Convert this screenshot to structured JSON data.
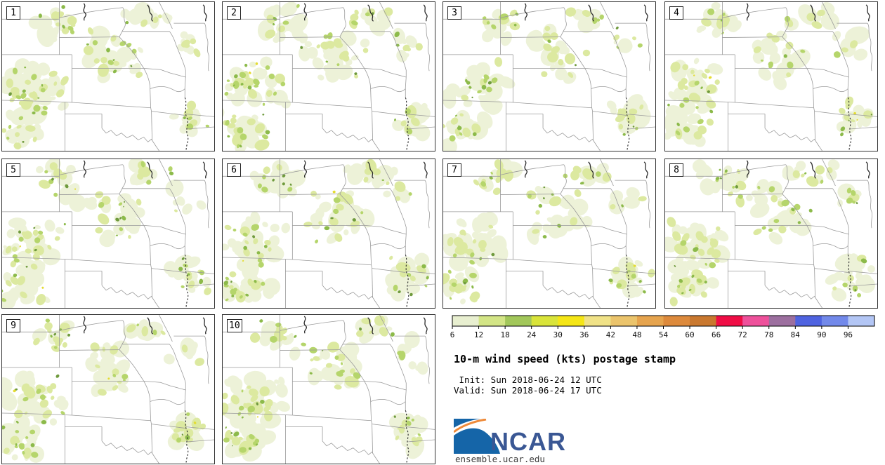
{
  "plot": {
    "title": "10-m wind speed (kts) postage stamp",
    "init_line": " Init: Sun 2018-06-24 12 UTC",
    "valid_line": "Valid: Sun 2018-06-24 17 UTC"
  },
  "panels": [
    {
      "label": "1",
      "seed": 1
    },
    {
      "label": "2",
      "seed": 2
    },
    {
      "label": "3",
      "seed": 3
    },
    {
      "label": "4",
      "seed": 4
    },
    {
      "label": "5",
      "seed": 5
    },
    {
      "label": "6",
      "seed": 6
    },
    {
      "label": "7",
      "seed": 7
    },
    {
      "label": "8",
      "seed": 8
    },
    {
      "label": "9",
      "seed": 9
    },
    {
      "label": "10",
      "seed": 10
    }
  ],
  "colorbar": {
    "tick_labels": [
      "6",
      "12",
      "18",
      "24",
      "30",
      "36",
      "42",
      "48",
      "54",
      "60",
      "66",
      "72",
      "78",
      "84",
      "90",
      "96"
    ],
    "segment_colors": [
      "#e8efd0",
      "#d3e586",
      "#a2c75a",
      "#d9e43a",
      "#f5e616",
      "#f0e287",
      "#ebc46c",
      "#e6a44e",
      "#dd8a3c",
      "#c9782f",
      "#ef0d45",
      "#ee519b",
      "#9c6f9f",
      "#4f63e0",
      "#7289ea",
      "#b3c6f5"
    ],
    "units": "kts"
  },
  "shading": {
    "pale": "#edf2d8",
    "light": "#dce9a0",
    "mid": "#b5d56b",
    "green": "#8cba4a",
    "dark": "#6f9a3d",
    "yellow": "#e4dc32"
  },
  "map_colors": {
    "border": "#9a9a9a",
    "river_dark": "#2a2a2a",
    "background": "#ffffff"
  },
  "logo": {
    "text": "NCAR",
    "url": "ensemble.ucar.edu",
    "blue": "#1565a8",
    "orange": "#ee8a3a",
    "text_color": "#3a5794"
  }
}
